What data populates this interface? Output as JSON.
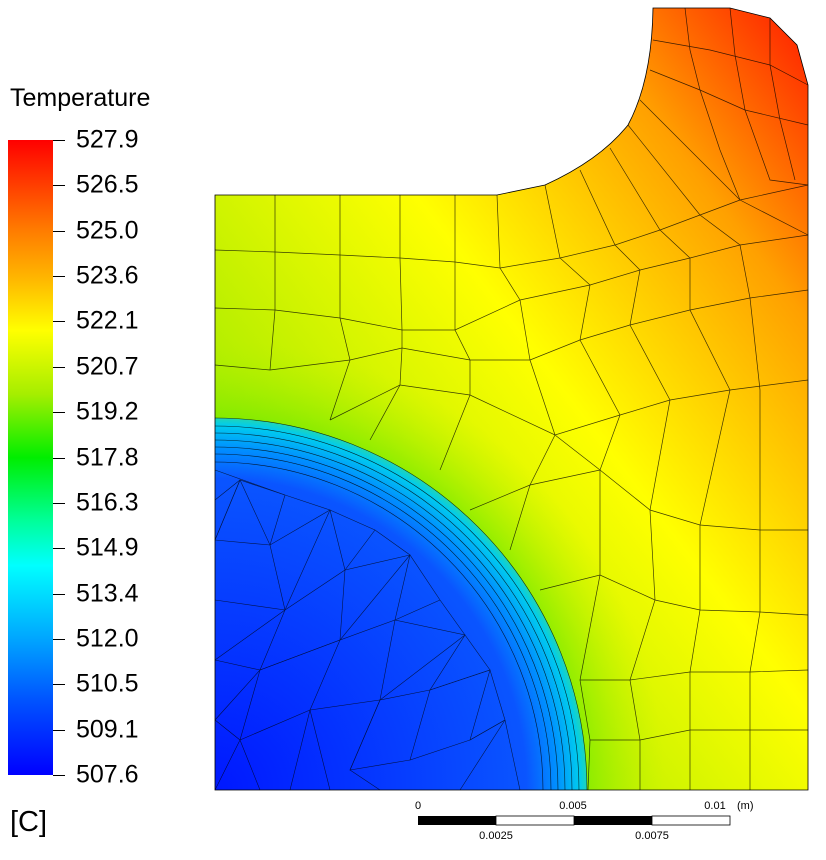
{
  "legend": {
    "title": "Temperature",
    "unit": "[C]",
    "ticks": [
      "527.9",
      "526.5",
      "525.0",
      "523.6",
      "522.1",
      "520.7",
      "519.2",
      "517.8",
      "516.3",
      "514.9",
      "513.4",
      "512.0",
      "510.5",
      "509.1",
      "507.6"
    ],
    "colors": [
      "#ff0000",
      "#ff7a00",
      "#ffb800",
      "#ffff00",
      "#a6ee00",
      "#00ee00",
      "#00ff9a",
      "#00ffff",
      "#00aaff",
      "#0055ff",
      "#0000ff"
    ]
  },
  "scale_bar": {
    "top_labels": [
      "0",
      "0.005",
      "0.01"
    ],
    "unit": "(m)",
    "bottom_labels": [
      "0.0025",
      "0.0075"
    ]
  }
}
